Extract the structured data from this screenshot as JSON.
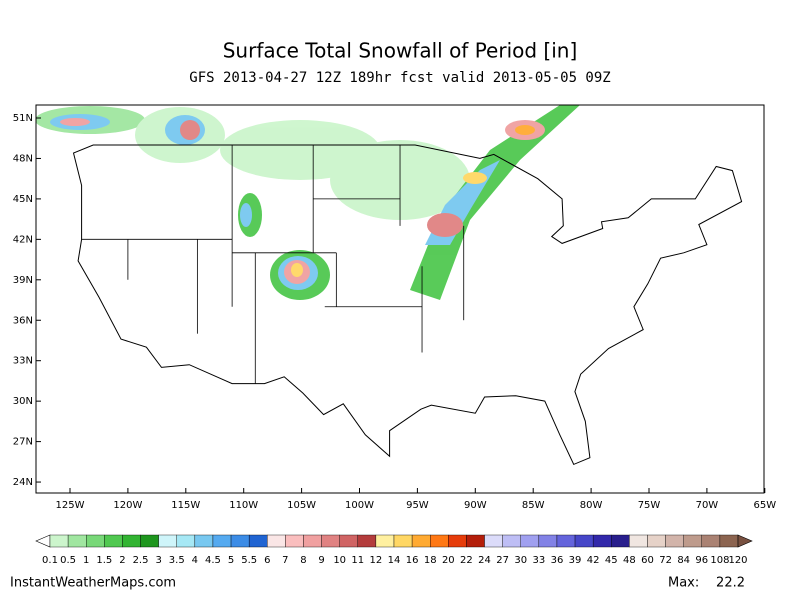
{
  "header": {
    "title": "Surface Total Snowfall of Period [in]",
    "subtitle": "GFS 2013-04-27 12Z 189hr fcst valid 2013-05-05 09Z"
  },
  "map": {
    "lat_labels": [
      "51N",
      "48N",
      "45N",
      "42N",
      "39N",
      "36N",
      "33N",
      "30N",
      "27N",
      "24N"
    ],
    "lon_labels": [
      "125W",
      "120W",
      "115W",
      "110W",
      "105W",
      "100W",
      "95W",
      "90W",
      "85W",
      "80W",
      "75W",
      "70W",
      "65W"
    ]
  },
  "colorbar": {
    "labels": [
      "0.1",
      "0.5",
      "1",
      "1.5",
      "2",
      "2.5",
      "3",
      "3.5",
      "4",
      "4.5",
      "5",
      "5.5",
      "6",
      "7",
      "8",
      "9",
      "10",
      "11",
      "12",
      "14",
      "16",
      "18",
      "20",
      "22",
      "24",
      "27",
      "30",
      "33",
      "36",
      "39",
      "42",
      "45",
      "48",
      "60",
      "72",
      "84",
      "96",
      "108",
      "120"
    ],
    "colors": [
      "#ccf5cc",
      "#a0e6a0",
      "#78d878",
      "#50c850",
      "#32b432",
      "#1e961e",
      "#cff5fa",
      "#a6e8f5",
      "#78c8f0",
      "#55aaf0",
      "#3c8ce6",
      "#2064d2",
      "#fae6e6",
      "#fabebe",
      "#f0a0a0",
      "#e08282",
      "#d06464",
      "#b43c3c",
      "#fff0a0",
      "#ffd764",
      "#ffaa32",
      "#ff7814",
      "#e63c0a",
      "#b41e0a",
      "#dcdcfa",
      "#bebef5",
      "#a0a0f0",
      "#8282e6",
      "#6464dc",
      "#4646c8",
      "#3228aa",
      "#281e8c",
      "#f0e6e1",
      "#e6d2c8",
      "#d2b4aa",
      "#be9b8c",
      "#aa8273",
      "#8c6450"
    ],
    "under_color": "#ffffff",
    "over_color": "#785040"
  },
  "footer": {
    "source": "InstantWeatherMaps.com",
    "max_label": "Max:",
    "max_value": "22.2"
  }
}
